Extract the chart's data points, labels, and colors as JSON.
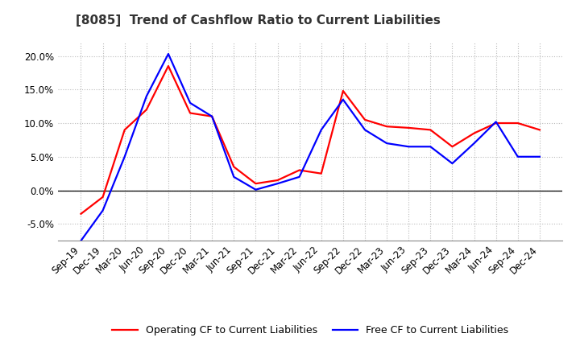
{
  "title": "[8085]  Trend of Cashflow Ratio to Current Liabilities",
  "x_labels": [
    "Sep-19",
    "Dec-19",
    "Mar-20",
    "Jun-20",
    "Sep-20",
    "Dec-20",
    "Mar-21",
    "Jun-21",
    "Sep-21",
    "Dec-21",
    "Mar-22",
    "Jun-22",
    "Sep-22",
    "Dec-22",
    "Mar-23",
    "Jun-23",
    "Sep-23",
    "Dec-23",
    "Mar-24",
    "Jun-24",
    "Sep-24",
    "Dec-24"
  ],
  "operating_cf": [
    -3.5,
    -1.0,
    9.0,
    12.0,
    18.5,
    11.5,
    11.0,
    3.5,
    1.0,
    1.5,
    3.0,
    2.5,
    14.8,
    10.5,
    9.5,
    9.3,
    9.0,
    6.5,
    8.5,
    10.0,
    10.0,
    9.0
  ],
  "free_cf": [
    -7.5,
    -3.0,
    5.0,
    14.0,
    20.3,
    13.0,
    11.0,
    2.0,
    0.1,
    1.0,
    2.0,
    9.0,
    13.5,
    9.0,
    7.0,
    6.5,
    6.5,
    4.0,
    7.0,
    10.2,
    5.0,
    5.0
  ],
  "operating_cf_color": "#ff0000",
  "free_cf_color": "#0000ff",
  "ylim": [
    -7.5,
    22.0
  ],
  "yticks": [
    -5.0,
    0.0,
    5.0,
    10.0,
    15.0,
    20.0
  ],
  "legend_operating": "Operating CF to Current Liabilities",
  "legend_free": "Free CF to Current Liabilities",
  "background_color": "#ffffff",
  "grid_color": "#bbbbbb",
  "line_width": 1.6,
  "title_fontsize": 11,
  "tick_fontsize": 8.5
}
